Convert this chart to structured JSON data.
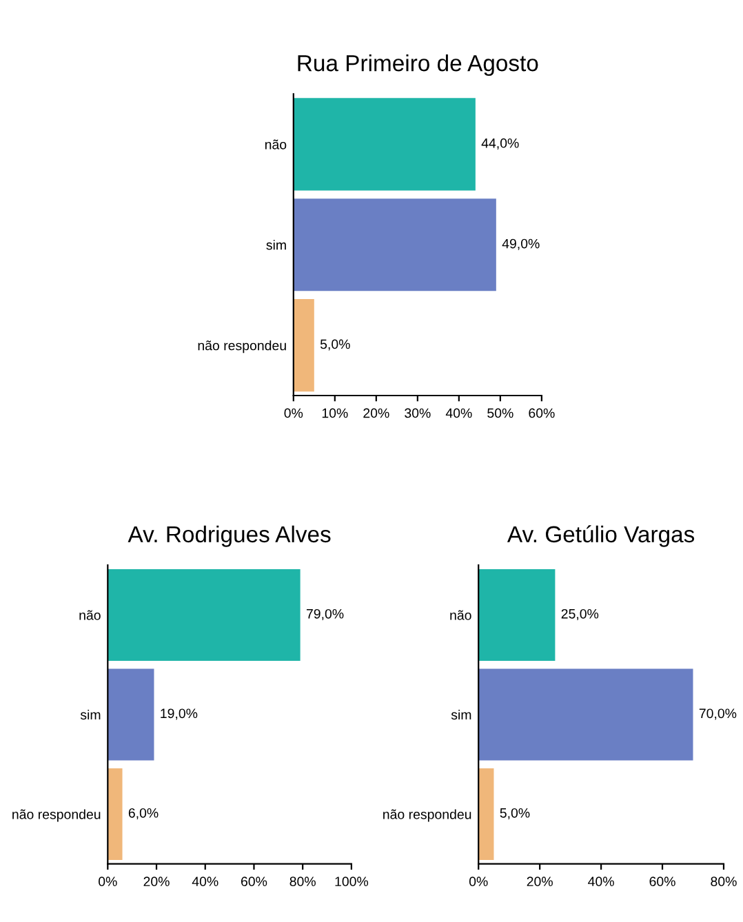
{
  "chart_data": [
    {
      "type": "bar",
      "orientation": "horizontal",
      "title": "Rua Primeiro de Agosto",
      "categories": [
        "não",
        "sim",
        "não respondeu"
      ],
      "values": [
        44,
        49,
        5
      ],
      "colors": [
        "#1fb5a8",
        "#6a7fc4",
        "#f0b77a"
      ],
      "value_labels": [
        "44,0%",
        "49,0%",
        "5,0%"
      ],
      "xlim": [
        0,
        60
      ],
      "xticks": [
        {
          "value": 0,
          "label": "0%"
        },
        {
          "value": 10,
          "label": "10%"
        },
        {
          "value": 20,
          "label": "20%"
        },
        {
          "value": 30,
          "label": "30%"
        },
        {
          "value": 40,
          "label": "40%"
        },
        {
          "value": 50,
          "label": "50%"
        },
        {
          "value": 60,
          "label": "60%"
        }
      ],
      "grid": false,
      "legend": false
    },
    {
      "type": "bar",
      "orientation": "horizontal",
      "title": "Av. Rodrigues Alves",
      "categories": [
        "não",
        "sim",
        "não respondeu"
      ],
      "values": [
        79,
        19,
        6
      ],
      "colors": [
        "#1fb5a8",
        "#6a7fc4",
        "#f0b77a"
      ],
      "value_labels": [
        "79,0%",
        "19,0%",
        "6,0%"
      ],
      "xlim": [
        0,
        100
      ],
      "xticks": [
        {
          "value": 0,
          "label": "0%"
        },
        {
          "value": 20,
          "label": "20%"
        },
        {
          "value": 40,
          "label": "40%"
        },
        {
          "value": 60,
          "label": "60%"
        },
        {
          "value": 80,
          "label": "80%"
        },
        {
          "value": 100,
          "label": "100%"
        }
      ],
      "grid": false,
      "legend": false
    },
    {
      "type": "bar",
      "orientation": "horizontal",
      "title": "Av. Getúlio Vargas",
      "categories": [
        "não",
        "sim",
        "não respondeu"
      ],
      "values": [
        25,
        70,
        5
      ],
      "colors": [
        "#1fb5a8",
        "#6a7fc4",
        "#f0b77a"
      ],
      "value_labels": [
        "25,0%",
        "70,0%",
        "5,0%"
      ],
      "xlim": [
        0,
        80
      ],
      "xticks": [
        {
          "value": 0,
          "label": "0%"
        },
        {
          "value": 20,
          "label": "20%"
        },
        {
          "value": 40,
          "label": "40%"
        },
        {
          "value": 60,
          "label": "60%"
        },
        {
          "value": 80,
          "label": "80%"
        }
      ],
      "grid": false,
      "legend": false
    }
  ]
}
